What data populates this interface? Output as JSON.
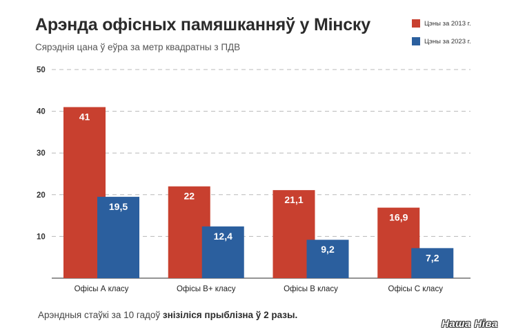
{
  "header": {
    "title": "Арэнда офісных памяшканняў у Мінску",
    "subtitle": "Сярэднія цана ў еўра за метр квадратны з ПДВ"
  },
  "footnote": {
    "text_plain": "Арэндныя стаўкі за 10 гадоў ",
    "text_bold": "знізіліся прыблізна ў 2 разы."
  },
  "logo": {
    "text": "Наша Ніва"
  },
  "colors": {
    "series_2013": "#c8402f",
    "series_2023": "#2b5f9e"
  },
  "chart_data": {
    "type": "bar",
    "title": "Арэнда офісных памяшканняў у Мінску",
    "subtitle": "Сярэднія цана ў еўра за метр квадратны з ПДВ",
    "categories": [
      "Офісы А класу",
      "Офісы В+ класу",
      "Офісы В класу",
      "Офісы С класу"
    ],
    "series": [
      {
        "name": "Цэны за 2013 г.",
        "values": [
          41,
          22,
          21.1,
          16.9
        ],
        "labels": [
          "41",
          "22",
          "21,1",
          "16,9"
        ],
        "color": "#c8402f"
      },
      {
        "name": "Цэны за 2023 г.",
        "values": [
          19.5,
          12.4,
          9.2,
          7.2
        ],
        "labels": [
          "19,5",
          "12,4",
          "9,2",
          "7,2"
        ],
        "color": "#2b5f9e"
      }
    ],
    "yticks": [
      "10",
      "20",
      "30",
      "40",
      "50"
    ],
    "ylim": [
      0,
      50
    ],
    "grid": true,
    "legend": "top-right"
  }
}
